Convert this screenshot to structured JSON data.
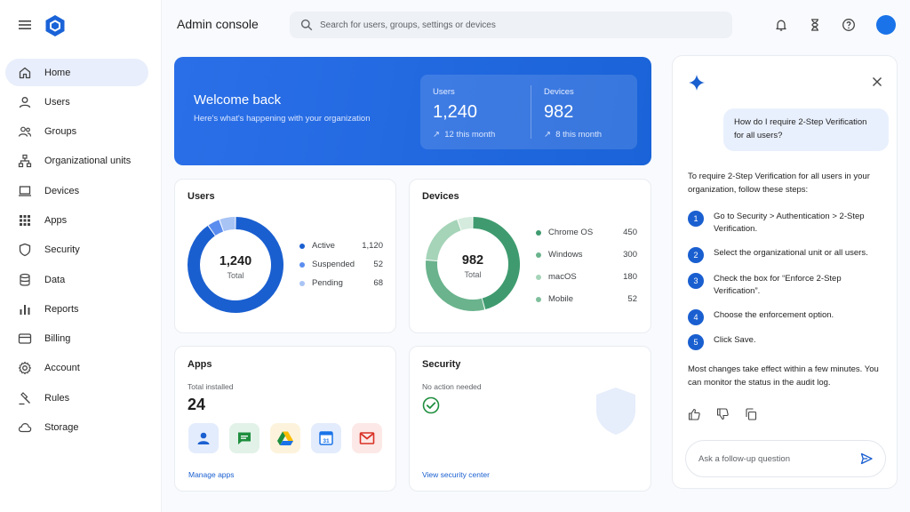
{
  "header": {
    "title": "Admin console",
    "search_placeholder": "Search for users, groups, settings or devices"
  },
  "sidebar": {
    "items": [
      {
        "label": "Home",
        "icon": "home-icon",
        "active": true
      },
      {
        "label": "Users",
        "icon": "user-icon"
      },
      {
        "label": "Groups",
        "icon": "groups-icon"
      },
      {
        "label": "Organizational units",
        "icon": "org-units-icon"
      },
      {
        "label": "Devices",
        "icon": "laptop-icon"
      },
      {
        "label": "Apps",
        "icon": "apps-grid-icon"
      },
      {
        "label": "Security",
        "icon": "shield-icon"
      },
      {
        "label": "Data",
        "icon": "database-icon"
      },
      {
        "label": "Reports",
        "icon": "bar-chart-icon"
      },
      {
        "label": "Billing",
        "icon": "card-icon"
      },
      {
        "label": "Account",
        "icon": "gear-icon"
      },
      {
        "label": "Rules",
        "icon": "gavel-icon"
      },
      {
        "label": "Storage",
        "icon": "cloud-icon"
      }
    ]
  },
  "hero": {
    "title": "Welcome back",
    "subtitle": "Here's what's happening with your organization",
    "users_label": "Users",
    "users_value": "1,240",
    "users_trend": "12 this month",
    "devices_label": "Devices",
    "devices_value": "982",
    "devices_trend": "8 this month"
  },
  "users_card": {
    "title": "Users",
    "total": "1,240",
    "total_label": "Total",
    "legend": [
      {
        "name": "Active",
        "value": "1,120",
        "count": 1120,
        "color": "#1a5fd0"
      },
      {
        "name": "Suspended",
        "value": "52",
        "count": 52,
        "color": "#5b8def"
      },
      {
        "name": "Pending",
        "value": "68",
        "count": 68,
        "color": "#a8c4f5"
      }
    ]
  },
  "devices_card": {
    "title": "Devices",
    "total": "982",
    "total_label": "Total",
    "legend": [
      {
        "name": "Chrome OS",
        "value": "450",
        "count": 450,
        "color": "#3f9b6f"
      },
      {
        "name": "Windows",
        "value": "300",
        "count": 300,
        "color": "#6ab38d"
      },
      {
        "name": "macOS",
        "value": "180",
        "count": 180,
        "color": "#a5d4b8"
      },
      {
        "name": "Mobile",
        "value": "52",
        "count": 52,
        "color": "#d4ebdd"
      }
    ]
  },
  "apps_card": {
    "title": "Apps",
    "total_label": "Total installed",
    "total": "24",
    "link": "Manage apps",
    "calendar_day": "31"
  },
  "security_card": {
    "title": "Security",
    "status": "No action needed",
    "link": "View security center"
  },
  "assistant": {
    "question": "How do I require 2-Step Verification for all users?",
    "intro": "To require 2-Step Verification for all users in your organization, follow these steps:",
    "steps": [
      {
        "n": "1",
        "text": "Go to Security > Authentication > 2-Step Verification."
      },
      {
        "n": "2",
        "text": "Select the organizational unit or all users."
      },
      {
        "n": "3",
        "text": "Check the box for “Enforce 2-Step Verification”."
      },
      {
        "n": "4",
        "text": "Choose the enforcement option."
      },
      {
        "n": "5",
        "text": "Click Save."
      }
    ],
    "outro": "Most changes take effect within a few minutes. You can monitor the status in the audit log.",
    "followup_placeholder": "Ask a follow-up question"
  },
  "colors": {
    "accent": "#1a73e8",
    "hero": "#1a63d8",
    "users_ring": "#1a5fd0",
    "devices_ring": "#3f9b6f"
  }
}
